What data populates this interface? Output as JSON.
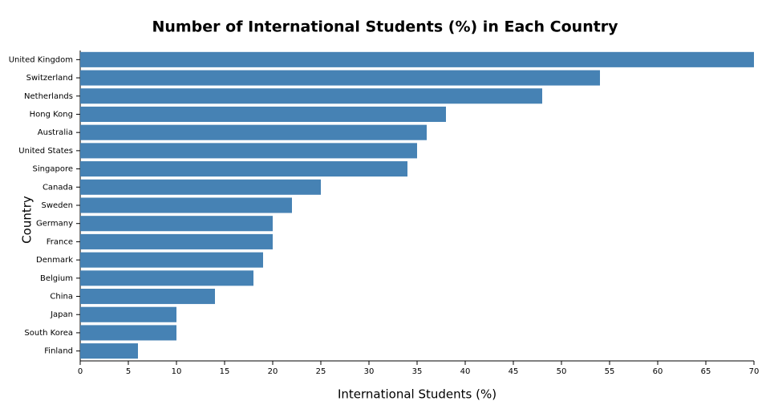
{
  "chart_data": {
    "type": "bar",
    "orientation": "horizontal",
    "title": "Number of International Students (%) in Each Country",
    "x_label": "International Students (%)",
    "y_label": "Country",
    "categories": [
      "United Kingdom",
      "Switzerland",
      "Netherlands",
      "Hong Kong",
      "Australia",
      "United States",
      "Singapore",
      "Canada",
      "Sweden",
      "Germany",
      "France",
      "Denmark",
      "Belgium",
      "China",
      "Japan",
      "South Korea",
      "Finland"
    ],
    "values": [
      70,
      54,
      48,
      38,
      36,
      35,
      34,
      25,
      22,
      20,
      20,
      19,
      18,
      14,
      10,
      10,
      6
    ],
    "color": "#4682b4",
    "xlim": [
      0,
      70
    ],
    "xticks": [
      0,
      5,
      10,
      15,
      20,
      25,
      30,
      35,
      40,
      45,
      50,
      55,
      60,
      65,
      70
    ],
    "grid": false
  }
}
